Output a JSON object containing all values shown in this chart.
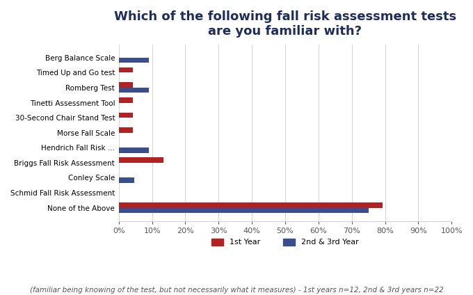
{
  "title": "Which of the following fall risk assessment tests\nare you familiar with?",
  "categories": [
    "Berg Balance Scale",
    "Timed Up and Go test",
    "Romberg Test",
    "Tinetti Assessment Tool",
    "30-Second Chair Stand Test",
    "Morse Fall Scale",
    "Hendrich Fall Risk ...",
    "Briggs Fall Risk Assessment",
    "Conley Scale",
    "Schmid Fall Risk Assessment",
    "None of the Above"
  ],
  "year1_values": [
    0,
    4.17,
    4.17,
    4.17,
    4.17,
    4.17,
    0,
    13.33,
    0,
    0,
    79.17
  ],
  "year23_values": [
    9.09,
    0,
    9.09,
    0,
    0,
    0,
    9.09,
    0,
    4.55,
    0,
    75.0
  ],
  "color_year1": "#B22222",
  "color_year23": "#3A4E8C",
  "bar_height": 0.35,
  "xlim": [
    0,
    100
  ],
  "xticks": [
    0,
    10,
    20,
    30,
    40,
    50,
    60,
    70,
    80,
    90,
    100
  ],
  "legend_labels": [
    "1st Year",
    "2nd & 3rd Year"
  ],
  "footnote": "(familiar being knowing of the test, but not necessarily what it measures) - 1st years n=12, 2nd & 3rd years n=22",
  "title_color": "#1F2D5A",
  "title_fontsize": 13,
  "footnote_fontsize": 7.5
}
